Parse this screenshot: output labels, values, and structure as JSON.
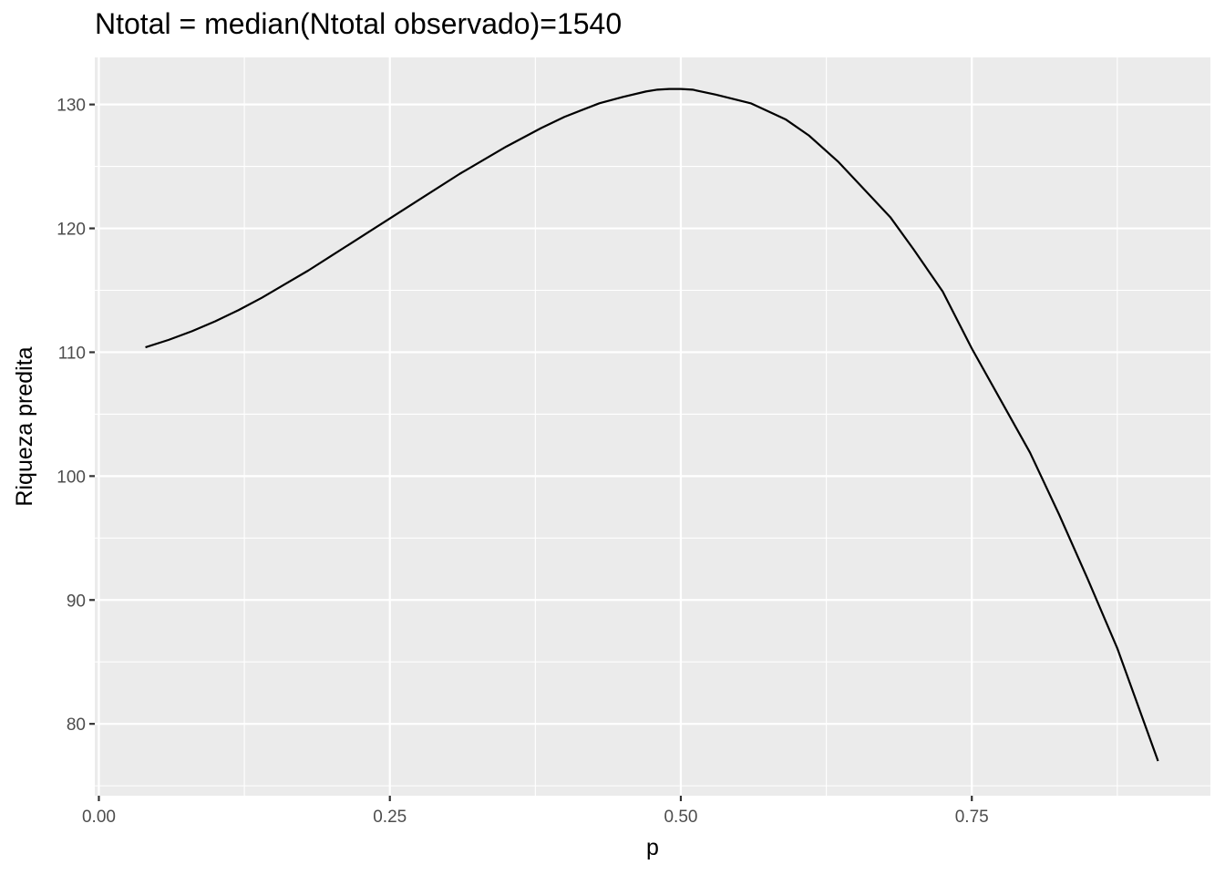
{
  "chart_data": {
    "type": "line",
    "title": "Ntotal = median(Ntotal observado)=1540",
    "xlabel": "p",
    "ylabel": "Riqueza predita",
    "xlim": [
      -0.0035,
      0.955
    ],
    "ylim": [
      74.2,
      133.8
    ],
    "x_ticks": [
      {
        "value": 0.0,
        "label": "0.00"
      },
      {
        "value": 0.25,
        "label": "0.25"
      },
      {
        "value": 0.5,
        "label": "0.50"
      },
      {
        "value": 0.75,
        "label": "0.75"
      }
    ],
    "y_ticks": [
      {
        "value": 80,
        "label": "80"
      },
      {
        "value": 90,
        "label": "90"
      },
      {
        "value": 100,
        "label": "100"
      },
      {
        "value": 110,
        "label": "110"
      },
      {
        "value": 120,
        "label": "120"
      },
      {
        "value": 130,
        "label": "130"
      }
    ],
    "grid": true,
    "colors": {
      "panel": "#ebebeb",
      "grid": "#ffffff",
      "line": "#000000"
    },
    "series": [
      {
        "x": [
          0.04,
          0.06,
          0.08,
          0.1,
          0.12,
          0.14,
          0.16,
          0.18,
          0.2,
          0.22,
          0.25,
          0.28,
          0.31,
          0.35,
          0.38,
          0.4,
          0.43,
          0.45,
          0.47,
          0.48,
          0.49,
          0.5,
          0.51,
          0.53,
          0.56,
          0.59,
          0.61,
          0.635,
          0.66,
          0.68,
          0.7,
          0.725,
          0.75,
          0.775,
          0.8,
          0.825,
          0.85,
          0.875,
          0.91
        ],
        "y": [
          110.4,
          111.0,
          111.7,
          112.5,
          113.4,
          114.4,
          115.5,
          116.6,
          117.8,
          119.0,
          120.8,
          122.6,
          124.4,
          126.6,
          128.1,
          129.0,
          130.1,
          130.6,
          131.05,
          131.2,
          131.25,
          131.25,
          131.2,
          130.8,
          130.1,
          128.8,
          127.5,
          125.4,
          122.9,
          120.9,
          118.3,
          114.9,
          110.3,
          106.1,
          101.9,
          96.9,
          91.6,
          86.1,
          77.0
        ]
      }
    ]
  }
}
